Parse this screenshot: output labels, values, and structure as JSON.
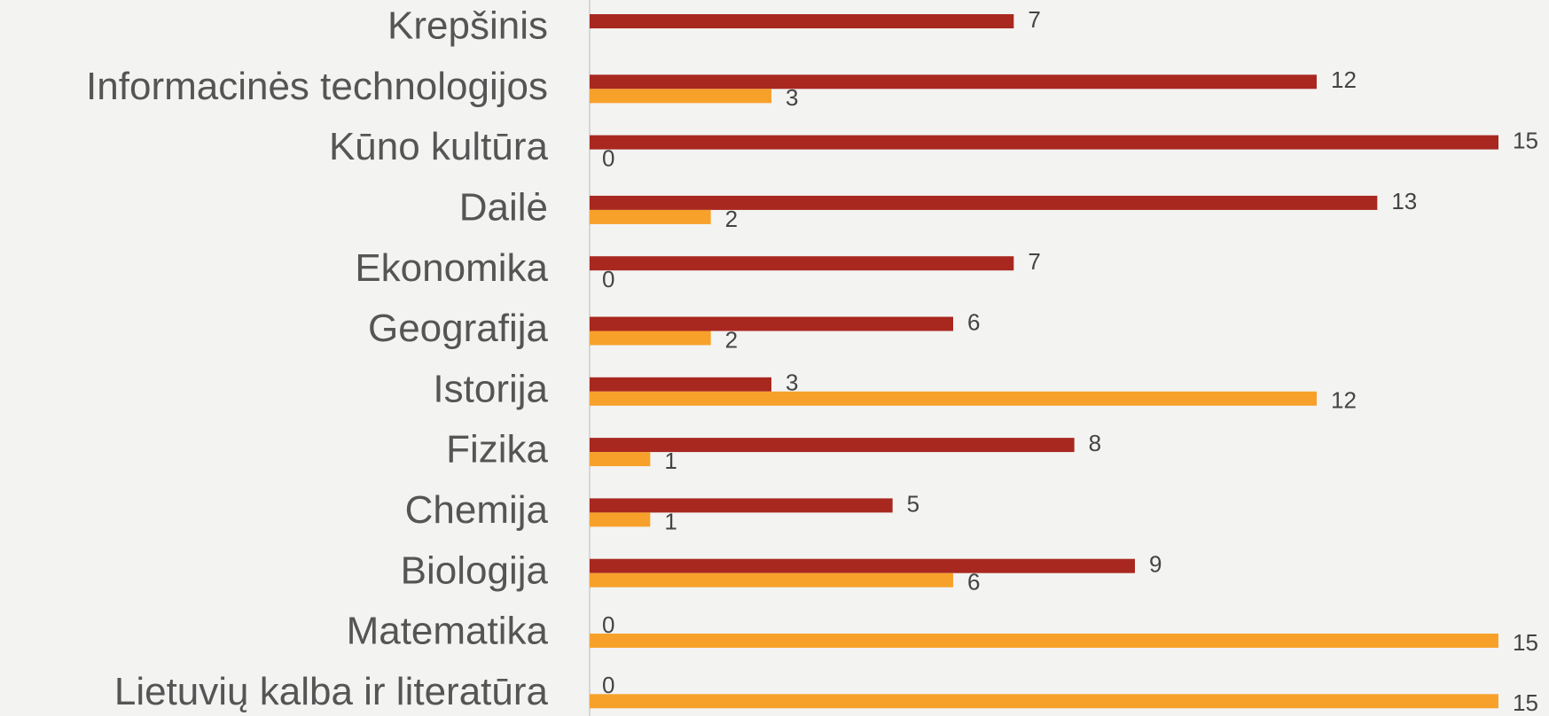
{
  "chart_data": {
    "type": "bar",
    "orientation": "horizontal",
    "categories": [
      "Krepšinis",
      "Informacinės technologijos",
      "Kūno kultūra",
      "Dailė",
      "Ekonomika",
      "Geografija",
      "Istorija",
      "Fizika",
      "Chemija",
      "Biologija",
      "Matematika",
      "Lietuvių kalba ir literatūra"
    ],
    "series": [
      {
        "color": "#a8281f",
        "values": [
          7,
          12,
          15,
          13,
          7,
          6,
          3,
          8,
          5,
          9,
          0,
          0
        ]
      },
      {
        "color": "#f7a12b",
        "values": [
          null,
          3,
          0,
          2,
          0,
          2,
          12,
          1,
          1,
          6,
          15,
          15
        ]
      }
    ],
    "xlim": [
      0,
      15
    ]
  }
}
